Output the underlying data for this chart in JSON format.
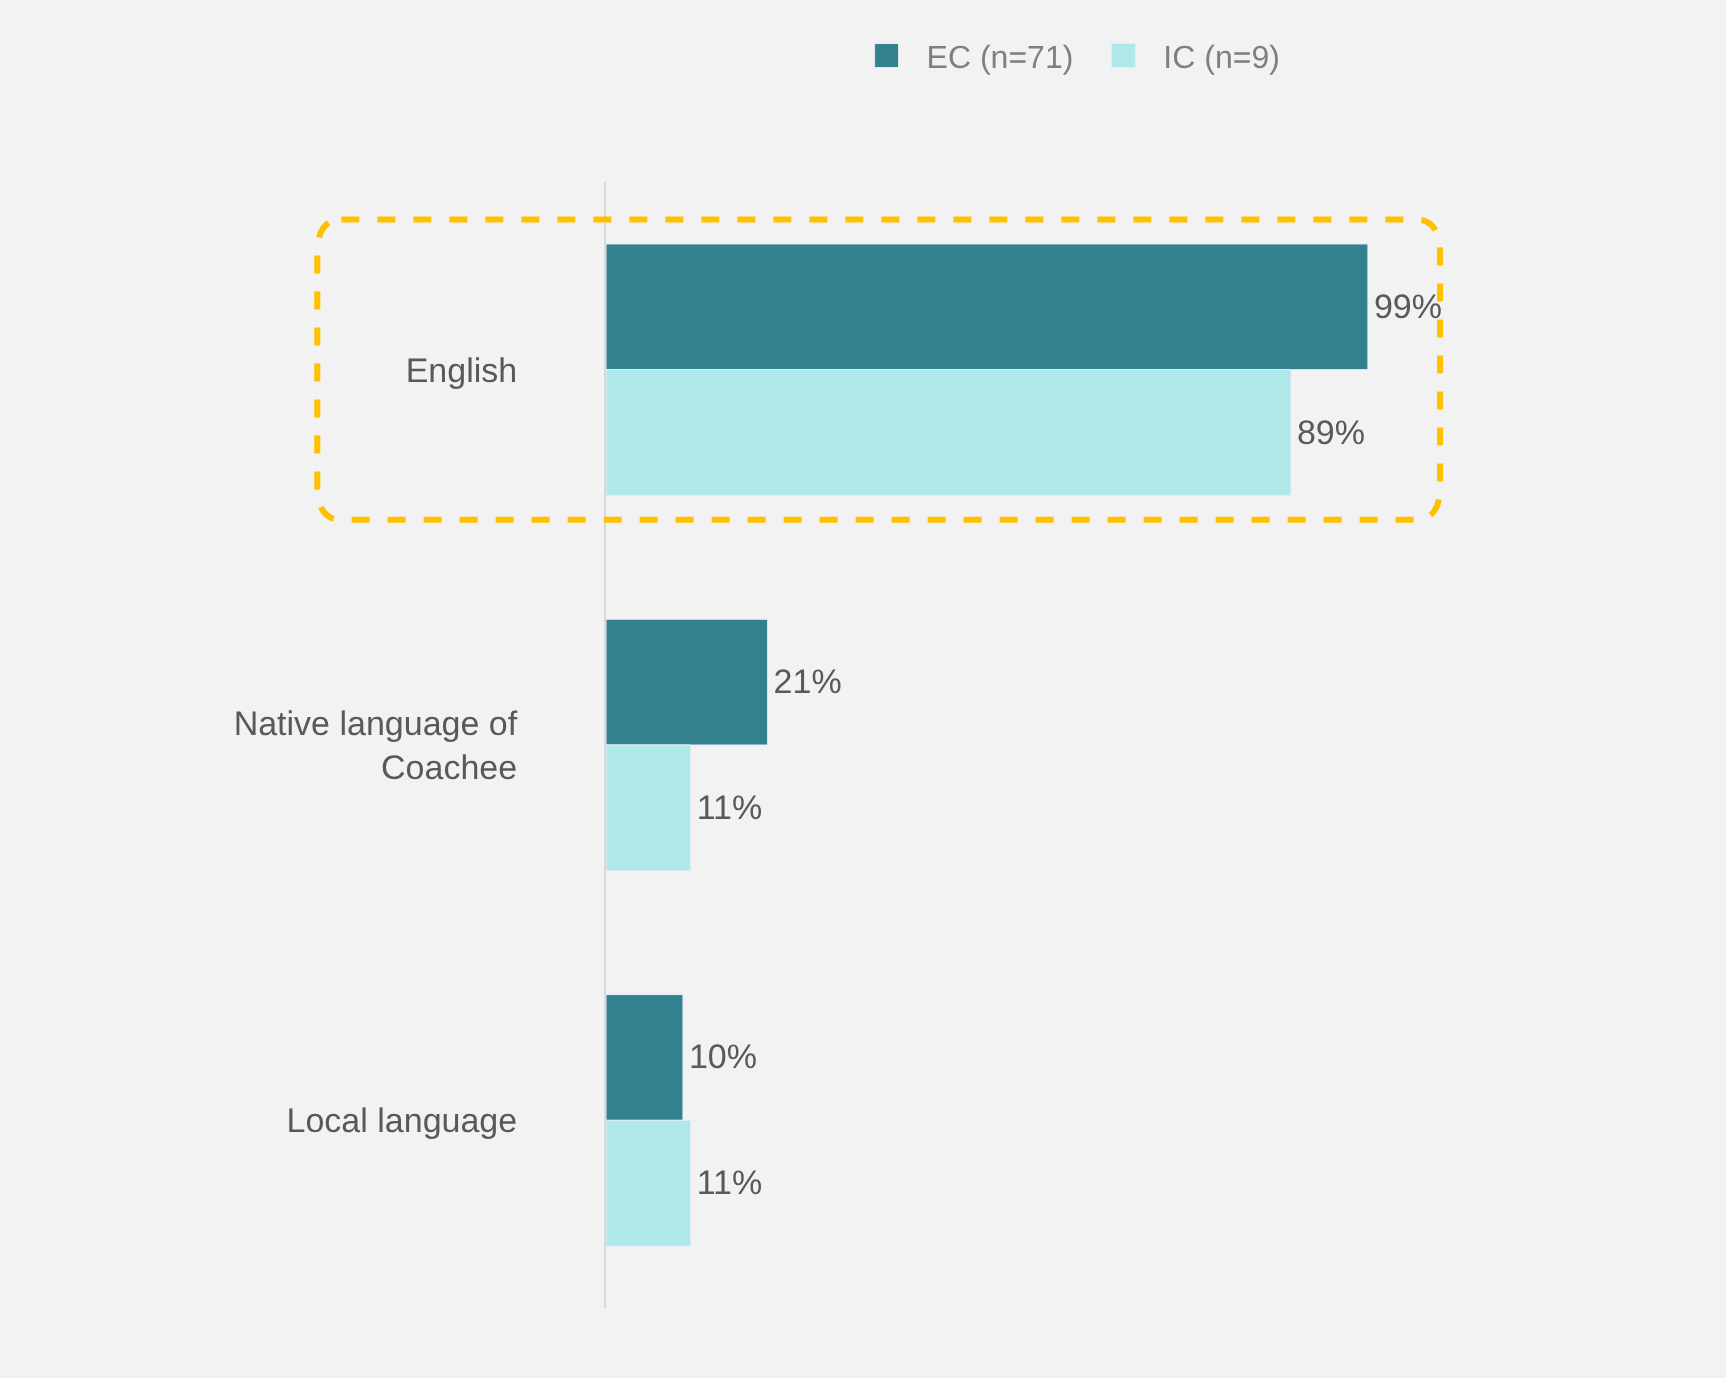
{
  "chart_data": {
    "type": "bar",
    "orientation": "horizontal",
    "categories": [
      "English",
      "Native language of Coachee",
      "Local language"
    ],
    "series": [
      {
        "name": "EC (n=71)",
        "color": "#31818f",
        "values": [
          99,
          21,
          10
        ],
        "value_labels": [
          "99%",
          "21%",
          "10%"
        ]
      },
      {
        "name": "IC (n=9)",
        "color": "#aee8e8",
        "values": [
          89,
          11,
          11
        ],
        "value_labels": [
          "89%",
          "11%",
          "11%"
        ]
      }
    ],
    "tick_labels": "y",
    "grid": false,
    "legend": "top"
  }
}
